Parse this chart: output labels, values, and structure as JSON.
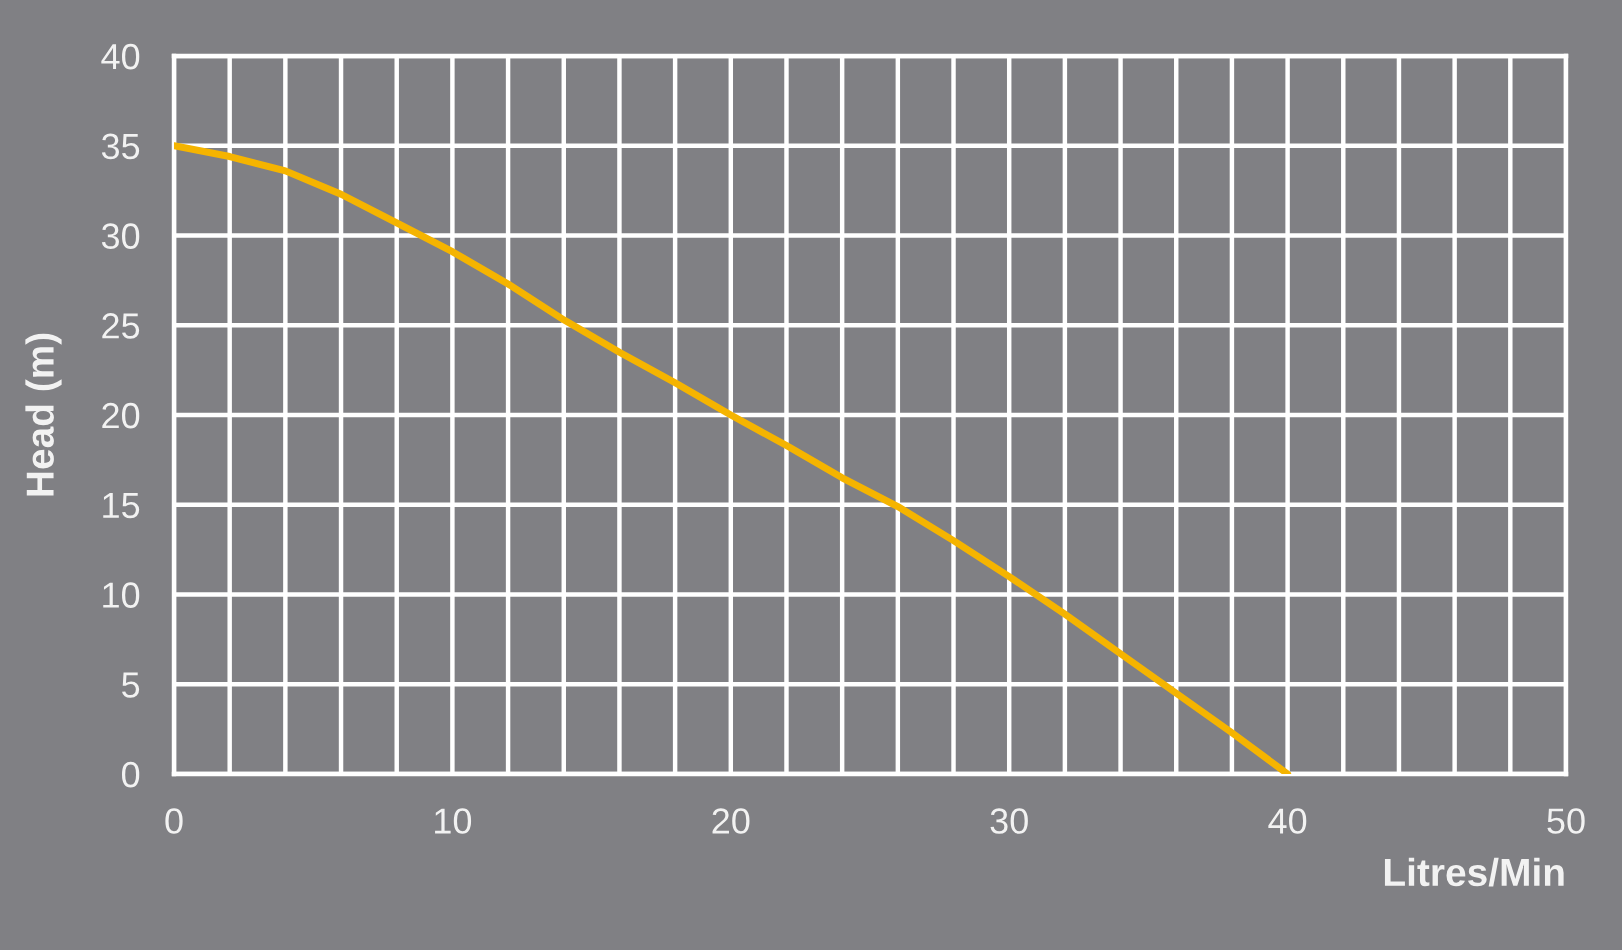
{
  "chart_data": {
    "type": "line",
    "xlabel": "Litres/Min",
    "ylabel": "Head (m)",
    "x": [
      0,
      2,
      4,
      6,
      8,
      10,
      12,
      14,
      16,
      18,
      20,
      22,
      24,
      26,
      28,
      30,
      32,
      34,
      36,
      38,
      40
    ],
    "series": [
      {
        "color": "#f5b400",
        "values": [
          35,
          34.4,
          33.6,
          32.3,
          30.7,
          29.1,
          27.3,
          25.3,
          23.5,
          21.8,
          20,
          18.3,
          16.5,
          14.9,
          13,
          11,
          8.9,
          6.7,
          4.5,
          2.3,
          0
        ]
      }
    ],
    "xlim": [
      0,
      50
    ],
    "ylim": [
      0,
      40
    ],
    "xticks": [
      0,
      {
        "value": 2,
        "label": null
      },
      {
        "value": 4,
        "label": null
      },
      {
        "value": 6,
        "label": null
      },
      {
        "value": 8,
        "label": null
      },
      10,
      {
        "value": 12,
        "label": null
      },
      {
        "value": 14,
        "label": null
      },
      {
        "value": 16,
        "label": null
      },
      {
        "value": 18,
        "label": null
      },
      20,
      {
        "value": 22,
        "label": null
      },
      {
        "value": 24,
        "label": null
      },
      {
        "value": 26,
        "label": null
      },
      {
        "value": 28,
        "label": null
      },
      30,
      {
        "value": 32,
        "label": null
      },
      {
        "value": 34,
        "label": null
      },
      {
        "value": 36,
        "label": null
      },
      {
        "value": 38,
        "label": null
      },
      40,
      {
        "value": 42,
        "label": null
      },
      {
        "value": 44,
        "label": null
      },
      {
        "value": 46,
        "label": null
      },
      {
        "value": 48,
        "label": null
      },
      50
    ],
    "yticks": [
      0,
      5,
      10,
      15,
      20,
      25,
      30,
      35,
      40
    ],
    "grid": true,
    "marker": "none",
    "line_style": "solid"
  }
}
